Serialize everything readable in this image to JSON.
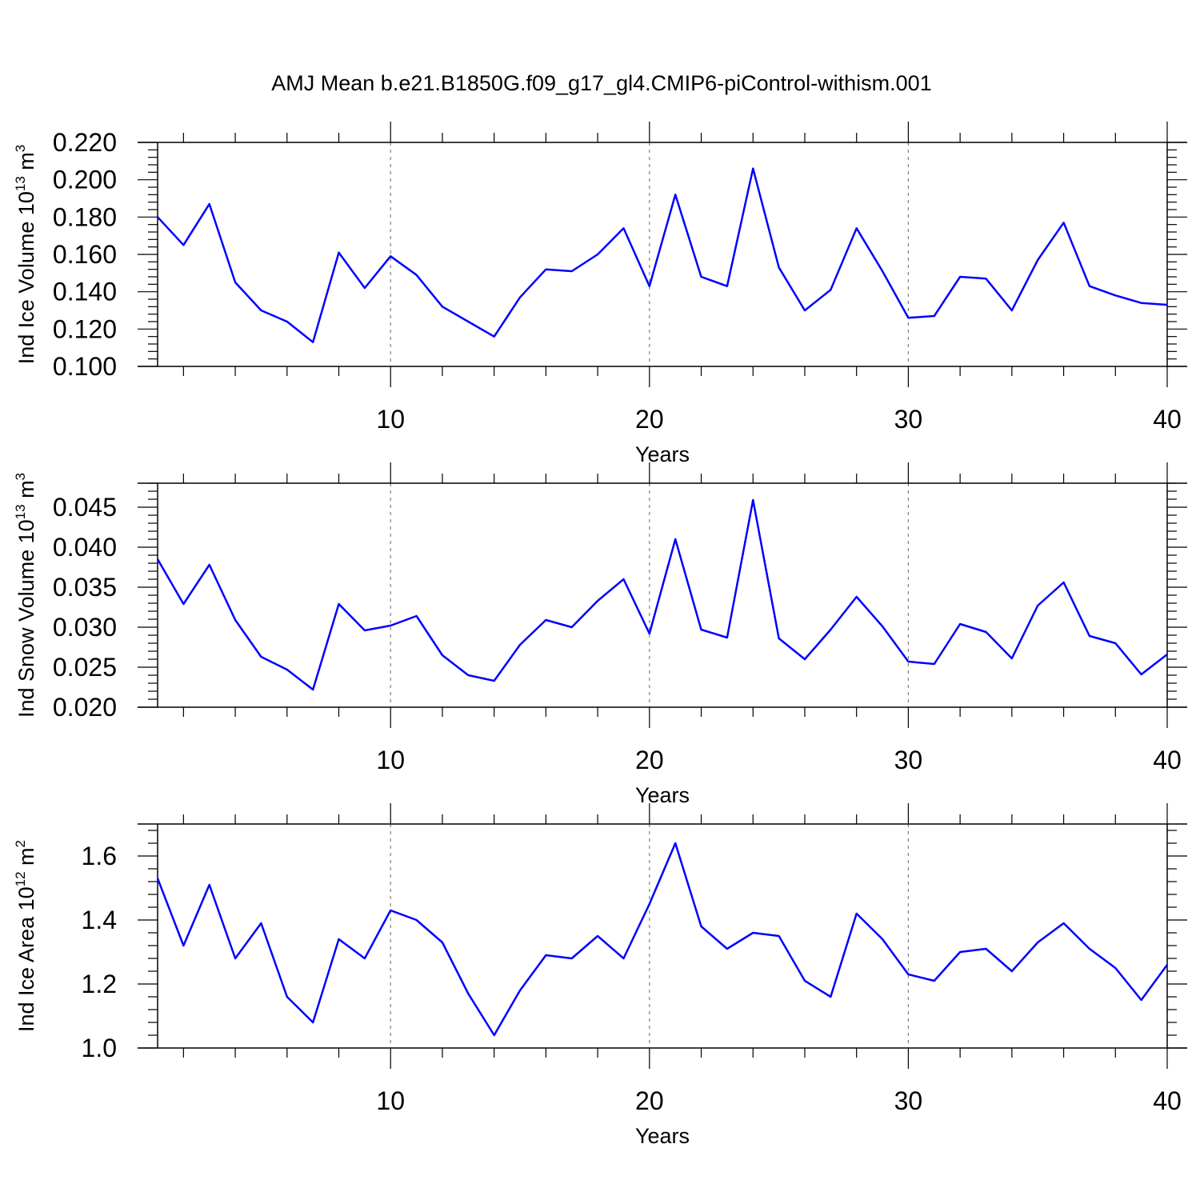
{
  "title": "AMJ Mean b.e21.B1850G.f09_g17_gl4.CMIP6-piControl-withism.001",
  "colors": {
    "line": "#0000ff",
    "axis": "#000000",
    "grid": "#808080"
  },
  "chart_data": [
    {
      "type": "line",
      "panel": "top",
      "ylabel": {
        "text": "Ind Ice Volume 10",
        "sup": "13",
        "unit": " m",
        "unit_sup": "3"
      },
      "xlabel": "Years",
      "xlim": [
        1,
        40
      ],
      "ylim": [
        0.1,
        0.22
      ],
      "ytick_labels": [
        "0.100",
        "0.120",
        "0.140",
        "0.160",
        "0.180",
        "0.200",
        "0.220"
      ],
      "yticks": [
        0.1,
        0.12,
        0.14,
        0.16,
        0.18,
        0.2,
        0.22
      ],
      "xticks": [
        10,
        20,
        30,
        40
      ],
      "grid_x": [
        10,
        20,
        30
      ],
      "x": [
        1,
        2,
        3,
        4,
        5,
        6,
        7,
        8,
        9,
        10,
        11,
        12,
        13,
        14,
        15,
        16,
        17,
        18,
        19,
        20,
        21,
        22,
        23,
        24,
        25,
        26,
        27,
        28,
        29,
        30,
        31,
        32,
        33,
        34,
        35,
        36,
        37,
        38,
        39,
        40
      ],
      "series": [
        {
          "values": [
            0.18,
            0.165,
            0.187,
            0.145,
            0.13,
            0.124,
            0.113,
            0.161,
            0.142,
            0.159,
            0.149,
            0.132,
            0.124,
            0.116,
            0.137,
            0.152,
            0.151,
            0.16,
            0.174,
            0.143,
            0.192,
            0.148,
            0.143,
            0.206,
            0.153,
            0.13,
            0.141,
            0.174,
            0.151,
            0.126,
            0.127,
            0.148,
            0.147,
            0.13,
            0.157,
            0.177,
            0.143,
            0.138,
            0.134,
            0.133
          ]
        }
      ]
    },
    {
      "type": "line",
      "panel": "middle",
      "ylabel": {
        "text": "Ind Snow Volume 10",
        "sup": "13",
        "unit": " m",
        "unit_sup": "3"
      },
      "xlabel": "Years",
      "xlim": [
        1,
        40
      ],
      "ylim": [
        0.02,
        0.048
      ],
      "ytick_labels": [
        "0.020",
        "0.025",
        "0.030",
        "0.035",
        "0.040",
        "0.045"
      ],
      "yticks": [
        0.02,
        0.025,
        0.03,
        0.035,
        0.04,
        0.045
      ],
      "xticks": [
        10,
        20,
        30,
        40
      ],
      "grid_x": [
        10,
        20,
        30
      ],
      "x": [
        1,
        2,
        3,
        4,
        5,
        6,
        7,
        8,
        9,
        10,
        11,
        12,
        13,
        14,
        15,
        16,
        17,
        18,
        19,
        20,
        21,
        22,
        23,
        24,
        25,
        26,
        27,
        28,
        29,
        30,
        31,
        32,
        33,
        34,
        35,
        36,
        37,
        38,
        39,
        40
      ],
      "series": [
        {
          "values": [
            0.0385,
            0.0329,
            0.0378,
            0.0309,
            0.0263,
            0.0247,
            0.0222,
            0.0329,
            0.0296,
            0.0302,
            0.0314,
            0.0265,
            0.024,
            0.0233,
            0.0278,
            0.0309,
            0.03,
            0.0333,
            0.036,
            0.0292,
            0.041,
            0.0297,
            0.0287,
            0.0459,
            0.0286,
            0.026,
            0.0297,
            0.0338,
            0.0301,
            0.0257,
            0.0254,
            0.0304,
            0.0294,
            0.0261,
            0.0327,
            0.0356,
            0.0289,
            0.028,
            0.0241,
            0.0266
          ]
        }
      ]
    },
    {
      "type": "line",
      "panel": "bottom",
      "ylabel": {
        "text": "Ind Ice Area 10",
        "sup": "12",
        "unit": " m",
        "unit_sup": "2"
      },
      "xlabel": "Years",
      "xlim": [
        1,
        40
      ],
      "ylim": [
        1.0,
        1.7
      ],
      "ytick_labels": [
        "1.0",
        "1.2",
        "1.4",
        "1.6"
      ],
      "yticks": [
        1.0,
        1.2,
        1.4,
        1.6
      ],
      "xticks": [
        10,
        20,
        30,
        40
      ],
      "grid_x": [
        10,
        20,
        30
      ],
      "x": [
        1,
        2,
        3,
        4,
        5,
        6,
        7,
        8,
        9,
        10,
        11,
        12,
        13,
        14,
        15,
        16,
        17,
        18,
        19,
        20,
        21,
        22,
        23,
        24,
        25,
        26,
        27,
        28,
        29,
        30,
        31,
        32,
        33,
        34,
        35,
        36,
        37,
        38,
        39,
        40
      ],
      "series": [
        {
          "values": [
            1.53,
            1.32,
            1.51,
            1.28,
            1.39,
            1.16,
            1.08,
            1.34,
            1.28,
            1.43,
            1.4,
            1.33,
            1.17,
            1.04,
            1.18,
            1.29,
            1.28,
            1.35,
            1.28,
            1.45,
            1.64,
            1.38,
            1.31,
            1.36,
            1.35,
            1.21,
            1.16,
            1.42,
            1.34,
            1.23,
            1.21,
            1.3,
            1.31,
            1.24,
            1.33,
            1.39,
            1.31,
            1.25,
            1.15,
            1.26
          ]
        }
      ]
    }
  ]
}
